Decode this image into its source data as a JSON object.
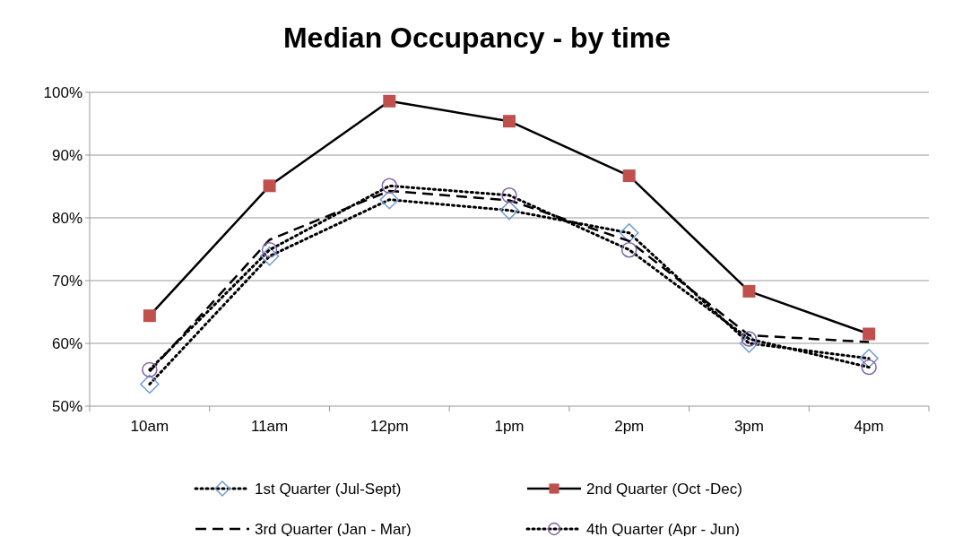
{
  "chart_data": {
    "type": "line",
    "title": "Median Occupancy - by time",
    "categories": [
      "10am",
      "11am",
      "12pm",
      "1pm",
      "2pm",
      "3pm",
      "4pm"
    ],
    "ylim": [
      50,
      100
    ],
    "yticks": [
      {
        "value": 50,
        "label": "50%"
      },
      {
        "value": 60,
        "label": "60%"
      },
      {
        "value": 70,
        "label": "70%"
      },
      {
        "value": 80,
        "label": "80%"
      },
      {
        "value": 90,
        "label": "90%"
      },
      {
        "value": 100,
        "label": "100%"
      }
    ],
    "grid": "y",
    "legend": "bottom",
    "series": [
      {
        "name": "1st Quarter (Jul-Sept)",
        "color": "#6f9bd1",
        "marker": "diamond",
        "line_style": "dotted",
        "values": [
          53.5,
          73.9,
          82.9,
          81.2,
          77.6,
          60.0,
          57.6
        ]
      },
      {
        "name": "2nd Quarter (Oct -Dec)",
        "color": "#c0504d",
        "marker": "square",
        "line_style": "solid",
        "values": [
          64.4,
          85.1,
          98.6,
          95.4,
          86.7,
          68.3,
          61.5
        ]
      },
      {
        "name": "3rd Quarter (Jan - Mar)",
        "color": "#000000",
        "marker": "none",
        "line_style": "dashed",
        "values": [
          55.5,
          76.5,
          84.3,
          82.8,
          76.3,
          61.3,
          60.2
        ]
      },
      {
        "name": "4th Quarter (Apr - Jun)",
        "color": "#8064a2",
        "marker": "circle",
        "line_style": "dotted",
        "values": [
          55.8,
          74.9,
          85.1,
          83.6,
          74.9,
          60.7,
          56.2
        ]
      }
    ]
  }
}
